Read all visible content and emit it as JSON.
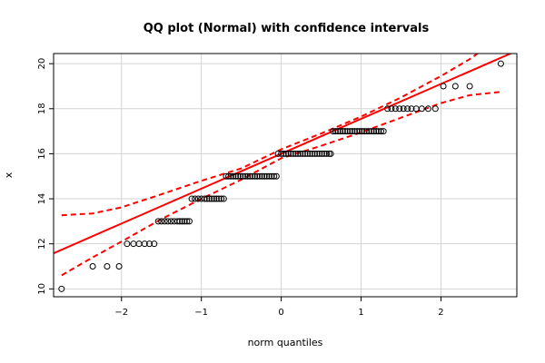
{
  "chart_data": {
    "type": "scatter",
    "title": "QQ plot (Normal) with confidence intervals",
    "xlabel": "norm quantiles",
    "ylabel": "x",
    "xlim": [
      -2.85,
      2.95
    ],
    "ylim": [
      9.65,
      20.45
    ],
    "xticks": [
      -2,
      -1,
      0,
      1,
      2
    ],
    "xtick_labels": [
      "−2",
      "−1",
      "0",
      "1",
      "2"
    ],
    "yticks": [
      10,
      12,
      14,
      16,
      18,
      20
    ],
    "ytick_labels": [
      "10",
      "12",
      "14",
      "16",
      "18",
      "20"
    ],
    "grid": true,
    "colors": {
      "points": "#000000",
      "fit_line": "#ff0000",
      "confidence": "#ff0000",
      "grid": "#d3d3d3"
    },
    "points": [
      {
        "y": 10,
        "x": [
          -2.75
        ]
      },
      {
        "y": 11,
        "x": [
          -2.36,
          -2.18,
          -2.03
        ]
      },
      {
        "y": 12,
        "x": [
          -1.93,
          -1.85,
          -1.78,
          -1.71,
          -1.65,
          -1.59
        ]
      },
      {
        "y": 13,
        "x": [
          -1.54,
          -1.5,
          -1.46,
          -1.42,
          -1.38,
          -1.34,
          -1.3,
          -1.27,
          -1.24,
          -1.21,
          -1.18,
          -1.15
        ]
      },
      {
        "y": 14,
        "x": [
          -1.12,
          -1.08,
          -1.04,
          -1.0,
          -0.96,
          -0.93,
          -0.9,
          -0.87,
          -0.84,
          -0.81,
          -0.78,
          -0.75,
          -0.72
        ]
      },
      {
        "y": 15,
        "x": [
          -0.69,
          -0.66,
          -0.63,
          -0.6,
          -0.57,
          -0.54,
          -0.51,
          -0.48,
          -0.45,
          -0.42,
          -0.39,
          -0.36,
          -0.33,
          -0.3,
          -0.27,
          -0.24,
          -0.21,
          -0.18,
          -0.15,
          -0.12,
          -0.09,
          -0.06
        ]
      },
      {
        "y": 16,
        "x": [
          -0.04,
          0.0,
          0.03,
          0.06,
          0.09,
          0.12,
          0.15,
          0.18,
          0.21,
          0.24,
          0.27,
          0.3,
          0.33,
          0.36,
          0.39,
          0.42,
          0.45,
          0.48,
          0.51,
          0.54,
          0.57,
          0.6,
          0.62
        ]
      },
      {
        "y": 17,
        "x": [
          0.65,
          0.68,
          0.71,
          0.74,
          0.77,
          0.8,
          0.83,
          0.86,
          0.89,
          0.92,
          0.95,
          0.98,
          1.01,
          1.04,
          1.07,
          1.1,
          1.13,
          1.16,
          1.19,
          1.22,
          1.25,
          1.28
        ]
      },
      {
        "y": 18,
        "x": [
          1.33,
          1.38,
          1.43,
          1.48,
          1.53,
          1.58,
          1.63,
          1.69,
          1.76,
          1.84,
          1.93
        ]
      },
      {
        "y": 19,
        "x": [
          2.03,
          2.18,
          2.36
        ]
      },
      {
        "y": 20,
        "x": [
          2.75
        ]
      }
    ],
    "fit_line": {
      "intercept": 16.0,
      "slope": 1.55
    },
    "confidence_upper": [
      [
        -2.75,
        13.27
      ],
      [
        -2.36,
        13.35
      ],
      [
        -2.0,
        13.62
      ],
      [
        -1.5,
        14.2
      ],
      [
        -1.0,
        14.8
      ],
      [
        -0.5,
        15.35
      ],
      [
        0.0,
        16.2
      ],
      [
        0.5,
        16.9
      ],
      [
        1.0,
        17.65
      ],
      [
        1.5,
        18.5
      ],
      [
        2.0,
        19.45
      ],
      [
        2.36,
        20.2
      ],
      [
        2.75,
        21.2
      ]
    ],
    "confidence_lower": [
      [
        -2.75,
        10.6
      ],
      [
        -2.36,
        11.4
      ],
      [
        -2.0,
        12.1
      ],
      [
        -1.5,
        13.1
      ],
      [
        -1.0,
        14.0
      ],
      [
        -0.5,
        14.85
      ],
      [
        0.0,
        15.8
      ],
      [
        0.5,
        16.35
      ],
      [
        1.0,
        16.95
      ],
      [
        1.5,
        17.6
      ],
      [
        2.0,
        18.25
      ],
      [
        2.36,
        18.6
      ],
      [
        2.75,
        18.75
      ]
    ]
  }
}
